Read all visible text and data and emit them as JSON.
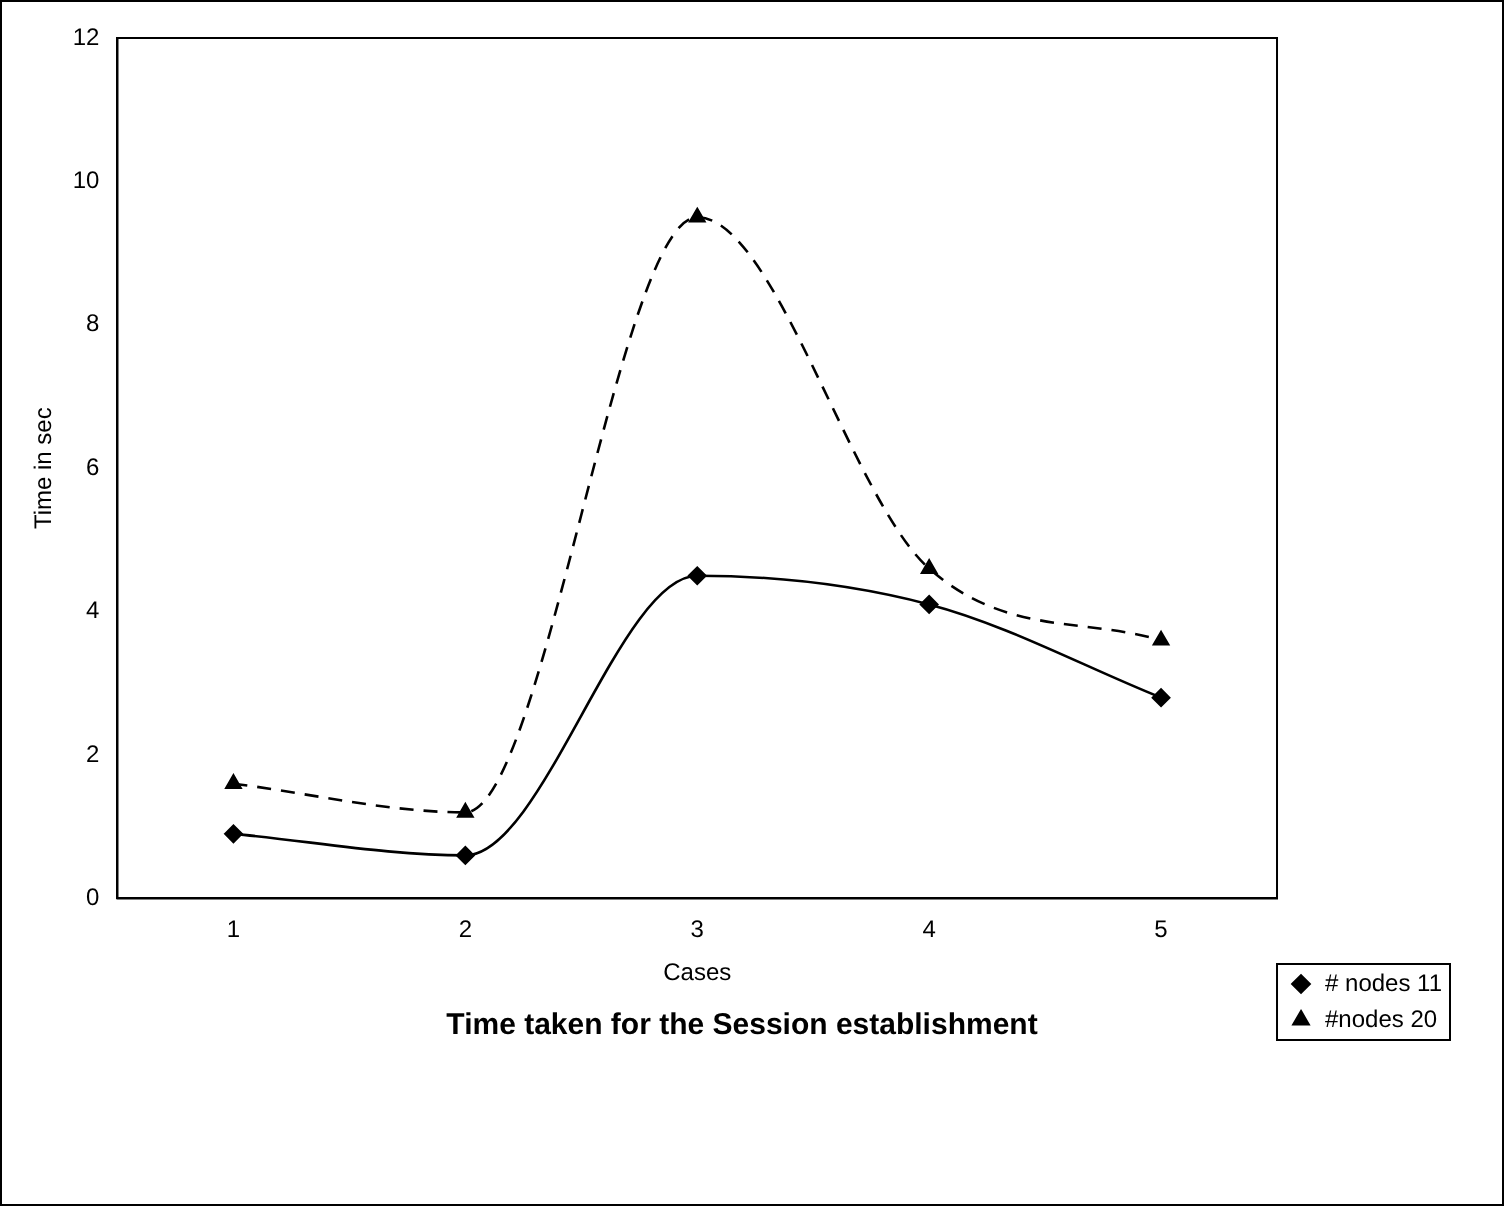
{
  "chart_data": {
    "type": "line",
    "title": "Time taken for the Session establishment",
    "xlabel": "Cases",
    "ylabel": "Time in sec",
    "categories": [
      "1",
      "2",
      "3",
      "4",
      "5"
    ],
    "series": [
      {
        "name": "# nodes 11",
        "color": "#000000",
        "values": [
          0.9,
          0.6,
          4.5,
          4.1,
          2.8
        ],
        "marker": "diamond",
        "line_style": "solid"
      },
      {
        "name": "#nodes 20",
        "color": "#000000",
        "values": [
          1.6,
          1.2,
          9.5,
          4.6,
          3.6
        ],
        "marker": "triangle",
        "line_style": "dashed"
      }
    ],
    "ylim": [
      0,
      12
    ],
    "yticks": [
      0,
      2,
      4,
      6,
      8,
      10,
      12
    ],
    "grid": false,
    "legend": "right"
  }
}
